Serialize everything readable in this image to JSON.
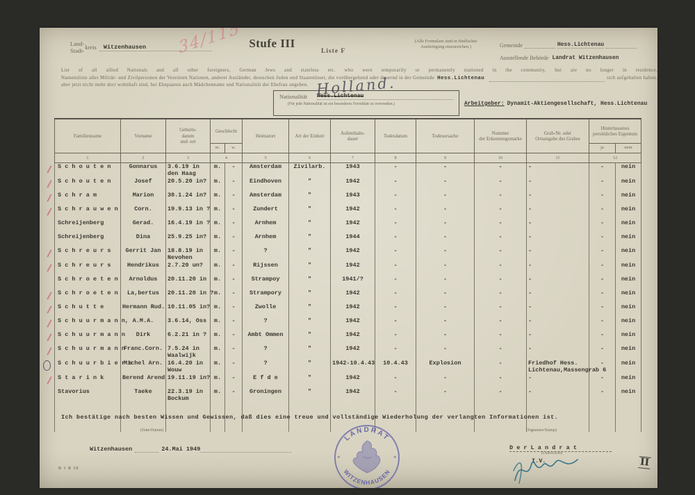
{
  "header": {
    "kreis_top": "Land-",
    "kreis_bottom": "Stadt-",
    "kreis_word": "kreis",
    "kreis_value": "Witzenhausen",
    "scribble": "34/115",
    "title": "Stufe III",
    "liste": "Liste F",
    "note_line1": "(Alle Formulare sind in fünffacher",
    "note_line2": "Ausfertigung einzureichen.)",
    "gemeinde_label": "Gemeinde",
    "gemeinde_value": "Hess.Lichtenau",
    "behoerde_label": "Ausstellende Behörde",
    "behoerde_value": "Landrat Witzenhausen"
  },
  "intro": {
    "line_en": "List of all allied Nationals and all other foreigners, German Jews and stateless etc. who were temporarily or permanently stationed in the community, but are no longer in residence.",
    "line_de": "Namensliste aller Militär- und Zivilpersonen der Vereinten Nationen, anderer Ausländer, deutschen Juden und Staatenloser, die vorübergehend oder dauernd in der Gemeinde",
    "de_value": "Hess.Lichtenau",
    "de_tail": "sich aufgehalten haben.",
    "line3": "aber jetzt nicht mehr dort wohnhaft sind, bei Ehepaaren auch Mädchenname und Nationalität der Ehefrau angeben."
  },
  "nationality": {
    "label": "Nationalität",
    "struck_value": "Hess.Lichtenau",
    "handwritten": "Holland.",
    "note": "(Für jede Nationalität ist ein besonderes Formblatt zu verwenden.)"
  },
  "employer": {
    "label": "Arbeitgeber:",
    "value": "Dynamit-Aktiengesellschaft, Hess.Lichtenau"
  },
  "table": {
    "headers": {
      "familienname": "Familienname",
      "vorname": "Vorname",
      "geburt": "Geburts-\ndatum\nund -ort",
      "geschlecht": "Geschlecht",
      "m": "m.",
      "w": "w.",
      "heimatort": "Heimatort",
      "art": "Art der Einheit",
      "aufenthalt": "Aufenthalts-\ndauer",
      "todesdatum": "Todesdatum",
      "todesursache": "Todesursache",
      "nummer": "Nummer\nder Erkennungsmarke",
      "grab": "Grab-Nr. oder\nOrtsangabe des Grabes",
      "eigentum": "Hinterlassenes persönliches Eigentum",
      "ja": "ja",
      "nein": "nein"
    },
    "numbers": [
      "1",
      "2",
      "3",
      "4",
      "5",
      "6",
      "7",
      "8",
      "9",
      "10",
      "11",
      "12"
    ],
    "rows": [
      {
        "red_mark": true,
        "pen_circle": false,
        "cells": [
          "S c h o u t e n",
          "Gonnarus",
          "3.6.19 in\nden Haag",
          "m.",
          "-",
          "Amsterdam",
          "Zivilarb.",
          "1943",
          "-",
          "-",
          "-",
          "-",
          "-",
          "nein"
        ]
      },
      {
        "red_mark": true,
        "pen_circle": false,
        "cells": [
          "S c h o u t e n",
          "Josef",
          "20.5.20 in?",
          "m.",
          "-",
          "Eindhoven",
          "\"",
          "1942",
          "-",
          "-",
          "-",
          "-",
          "-",
          "nein"
        ]
      },
      {
        "red_mark": true,
        "pen_circle": false,
        "cells": [
          "S c h r a m",
          "Marion",
          "30.1.24 in?",
          "m.",
          "-",
          "Amsterdam",
          "\"",
          "1943",
          "-",
          "-",
          "-",
          "-",
          "-",
          "nein"
        ]
      },
      {
        "red_mark": true,
        "pen_circle": false,
        "cells": [
          "S c h r a u w e n",
          "Corn.",
          "19.9.13 in ?",
          "m.",
          "-",
          "Zundert",
          "\"",
          "1942",
          "-",
          "-",
          "-",
          "-",
          "-",
          "nein"
        ]
      },
      {
        "red_mark": false,
        "pen_circle": false,
        "cells": [
          "Schreijenberg",
          "Gerad.",
          "16.4.19 in ?",
          "m.",
          "-",
          "Arnhem",
          "\"",
          "1942",
          "-",
          "-",
          "-",
          "-",
          "-",
          "nein"
        ]
      },
      {
        "red_mark": false,
        "pen_circle": false,
        "cells": [
          "Schreijenberg",
          "Dina",
          "25.9.25 in?",
          "m.",
          "-",
          "Arnhem",
          "\"",
          "1944",
          "-",
          "-",
          "-",
          "-",
          "-",
          "nein"
        ]
      },
      {
        "red_mark": true,
        "pen_circle": false,
        "cells": [
          "S c h r e u r s",
          "Gerrit Jan",
          "18.8.19 in\nNevohen",
          "m.",
          "-",
          "?",
          "\"",
          "1942",
          "-",
          "-",
          "-",
          "-",
          "-",
          "nein"
        ]
      },
      {
        "red_mark": true,
        "pen_circle": false,
        "cells": [
          "S c h r e u r s",
          "Hendrikus",
          "2.7.20 un?",
          "m.",
          "-",
          "Rijssen",
          "\"",
          "1942",
          "-",
          "-",
          "-",
          "-",
          "-",
          "nein"
        ]
      },
      {
        "red_mark": false,
        "pen_circle": false,
        "cells": [
          "S c h r o e t e n",
          "Arnoldus",
          "20.11.20 in",
          "m.",
          "-",
          "Strampoy",
          "\"",
          "1941/?",
          "-",
          "-",
          "-",
          "-",
          "-",
          "nein"
        ]
      },
      {
        "red_mark": true,
        "pen_circle": false,
        "cells": [
          "S c h r o e t e n",
          "La,bertus",
          "20.11.20 in ?",
          "m.",
          "-",
          "Strampory",
          "\"",
          "1942",
          "-",
          "-",
          "-",
          "-",
          "-",
          "nein"
        ]
      },
      {
        "red_mark": true,
        "pen_circle": false,
        "cells": [
          "S c h u t t e",
          "Hermann Rud.",
          "10.11.05 in?",
          "m.",
          "-",
          "Zwolle",
          "\"",
          "1942",
          "-",
          "-",
          "-",
          "-",
          "-",
          "nein"
        ]
      },
      {
        "red_mark": true,
        "pen_circle": false,
        "cells": [
          "S c h u u r m a n n,",
          "A.M.A.",
          "3.6.14, Oss",
          "m.",
          "-",
          "?",
          "\"",
          "1942",
          "-",
          "-",
          "-",
          "-",
          "-",
          "nein"
        ]
      },
      {
        "red_mark": true,
        "pen_circle": false,
        "cells": [
          "S c h u u r m a n n",
          "Dirk",
          "6.2.21 in ?",
          "m.",
          "-",
          "Ambt Ommen",
          "\"",
          "1942",
          "-",
          "-",
          "-",
          "-",
          "-",
          "nein"
        ]
      },
      {
        "red_mark": true,
        "pen_circle": false,
        "cells": [
          "S c h u u r m a n n",
          "Franc.Corn.",
          "7.5.24 in\nWaalwijk",
          "m.",
          "-",
          "?",
          "\"",
          "1942",
          "-",
          "-",
          "-",
          "-",
          "-",
          "nein"
        ]
      },
      {
        "red_mark": false,
        "pen_circle": true,
        "cells": [
          "S c h u u r b i e r s",
          "Michel Arn.",
          "16.4.20 in\nWouw",
          "m.",
          "-",
          "?",
          "\"",
          "1942-10.4.43",
          "10.4.43",
          "Explosion",
          "-",
          "Friedhof Hess.\nLichtenau,Massengrab 6",
          "-",
          "nein"
        ]
      },
      {
        "red_mark": true,
        "pen_circle": false,
        "cells": [
          "S t a r i n k",
          "Berend Arend",
          "19.11.19 in?",
          "m.",
          "-",
          "E f d e",
          "\"",
          "1942",
          "-",
          "-",
          "-",
          "-",
          "-",
          "nein"
        ]
      },
      {
        "red_mark": false,
        "pen_circle": false,
        "cells": [
          "Stavorius",
          "Taeke",
          "22.3.19 in\nBockum",
          "m.",
          "-",
          "Groningen",
          "\"",
          "1942",
          "-",
          "-",
          "-",
          "-",
          "-",
          "nein"
        ]
      }
    ]
  },
  "footer": {
    "confirmation": "Ich bestätige nach besten Wissen und Gewissen, daß dies eine treue und vollständige Wiederholung der verlangten Informationen ist.",
    "date_label": "(Date/Datum)",
    "sig_label": "(Signature/Stamp)",
    "place": "Witzenhausen",
    "date": "24.Mai 1949",
    "signoff": "D e r  L a n d r a t",
    "signoff_sub": "(Unterschrift)",
    "iv": "I.V.",
    "form_code": "B 1 R 50",
    "pencil_mark": "II"
  },
  "stamp": {
    "top": "LANDRAT",
    "bottom": "WITZENHAUSEN",
    "star_left": "*",
    "star_right": "*"
  }
}
